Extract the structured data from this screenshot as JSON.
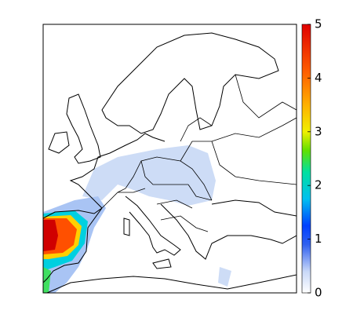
{
  "colorbar": {
    "lim": [
      0,
      5
    ],
    "ticks": [
      0,
      1,
      2,
      3,
      4,
      5
    ]
  }
}
